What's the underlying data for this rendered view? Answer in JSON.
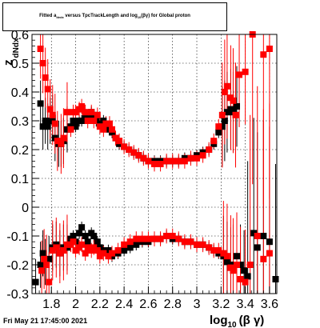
{
  "chart_data": {
    "type": "scatter",
    "title_parts": [
      "Fitted a",
      "dedx",
      " versus TpcTrackLength and log",
      "10",
      "(βγ) for Global proton"
    ],
    "xlabel": "log",
    "xlabel_sub": "10",
    "xlabel_tail": "(β γ)",
    "ylabel": "dNdx",
    "ylabel_prefix": "z",
    "xlim": [
      1.64,
      3.66
    ],
    "ylim": [
      -0.3,
      0.6
    ],
    "x_ticks": [
      "1.8",
      "2",
      "2.2",
      "2.4",
      "2.6",
      "2.8",
      "3",
      "3.2",
      "3.4",
      "3.6"
    ],
    "y_ticks": [
      "-0.3",
      "-0.2",
      "-0.1",
      "0",
      "0.1",
      "0.2",
      "0.3",
      "0.4",
      "0.5",
      "0.6"
    ],
    "grid": true,
    "series": [
      {
        "color": "#000000",
        "marker": "square",
        "points": [
          [
            1.71,
            0.36
          ],
          [
            1.73,
            0.28
          ],
          [
            1.75,
            0.3
          ],
          [
            1.77,
            0.28
          ],
          [
            1.79,
            0.3
          ],
          [
            1.81,
            0.31
          ],
          [
            1.83,
            0.24
          ],
          [
            1.86,
            0.22
          ],
          [
            1.88,
            0.22
          ],
          [
            1.9,
            0.23
          ],
          [
            1.93,
            0.27
          ],
          [
            1.96,
            0.28
          ],
          [
            1.98,
            0.3
          ],
          [
            2.0,
            0.28
          ],
          [
            2.03,
            0.3
          ],
          [
            2.05,
            0.3
          ],
          [
            2.08,
            0.32
          ],
          [
            2.1,
            0.31
          ],
          [
            2.13,
            0.33
          ],
          [
            2.15,
            0.32
          ],
          [
            2.17,
            0.3
          ],
          [
            2.2,
            0.29
          ],
          [
            2.23,
            0.3
          ],
          [
            2.25,
            0.28
          ],
          [
            2.28,
            0.27
          ],
          [
            2.3,
            0.26
          ],
          [
            2.33,
            0.24
          ],
          [
            2.36,
            0.22
          ],
          [
            2.4,
            0.21
          ],
          [
            2.44,
            0.2
          ],
          [
            2.48,
            0.19
          ],
          [
            2.52,
            0.18
          ],
          [
            2.56,
            0.17
          ],
          [
            2.6,
            0.16
          ],
          [
            2.65,
            0.16
          ],
          [
            2.7,
            0.16
          ],
          [
            2.75,
            0.16
          ],
          [
            2.8,
            0.16
          ],
          [
            2.85,
            0.16
          ],
          [
            2.9,
            0.17
          ],
          [
            2.95,
            0.17
          ],
          [
            3.0,
            0.18
          ],
          [
            3.05,
            0.19
          ],
          [
            3.1,
            0.2
          ],
          [
            3.14,
            0.22
          ],
          [
            3.18,
            0.26
          ],
          [
            3.21,
            0.28
          ],
          [
            3.23,
            0.3
          ],
          [
            3.25,
            0.33
          ],
          [
            3.28,
            0.34
          ],
          [
            3.3,
            0.33
          ],
          [
            3.33,
            0.35
          ],
          [
            1.67,
            -0.26
          ],
          [
            1.71,
            -0.2
          ],
          [
            1.73,
            -0.16
          ],
          [
            1.75,
            -0.19
          ],
          [
            1.78,
            -0.18
          ],
          [
            1.81,
            -0.14
          ],
          [
            1.84,
            -0.13
          ],
          [
            1.87,
            -0.16
          ],
          [
            1.9,
            -0.14
          ],
          [
            1.93,
            -0.14
          ],
          [
            1.96,
            -0.11
          ],
          [
            1.98,
            -0.1
          ],
          [
            2.0,
            -0.12
          ],
          [
            2.03,
            -0.09
          ],
          [
            2.05,
            -0.07
          ],
          [
            2.08,
            -0.1
          ],
          [
            2.1,
            -0.12
          ],
          [
            2.13,
            -0.09
          ],
          [
            2.15,
            -0.1
          ],
          [
            2.18,
            -0.12
          ],
          [
            2.2,
            -0.14
          ],
          [
            2.23,
            -0.15
          ],
          [
            2.27,
            -0.15
          ],
          [
            2.3,
            -0.17
          ],
          [
            2.35,
            -0.16
          ],
          [
            2.4,
            -0.15
          ],
          [
            2.45,
            -0.14
          ],
          [
            2.5,
            -0.13
          ],
          [
            2.55,
            -0.12
          ],
          [
            2.6,
            -0.12
          ],
          [
            2.65,
            -0.11
          ],
          [
            2.7,
            -0.11
          ],
          [
            2.75,
            -0.1
          ],
          [
            2.8,
            -0.11
          ],
          [
            2.85,
            -0.11
          ],
          [
            2.9,
            -0.12
          ],
          [
            2.95,
            -0.12
          ],
          [
            3.0,
            -0.13
          ],
          [
            3.05,
            -0.13
          ],
          [
            3.1,
            -0.14
          ],
          [
            3.14,
            -0.15
          ],
          [
            3.18,
            -0.16
          ],
          [
            3.22,
            -0.17
          ],
          [
            3.25,
            -0.19
          ],
          [
            3.28,
            -0.21
          ],
          [
            3.3,
            -0.2
          ],
          [
            3.33,
            -0.17
          ],
          [
            3.36,
            -0.2
          ],
          [
            3.39,
            -0.22
          ],
          [
            3.42,
            -0.24
          ],
          [
            3.47,
            -0.09
          ],
          [
            3.5,
            -0.14
          ],
          [
            3.55,
            -0.1
          ],
          [
            3.6,
            -0.12
          ],
          [
            3.65,
            -0.25
          ]
        ]
      },
      {
        "color": "#ff0000",
        "marker": "square",
        "points": [
          [
            1.71,
            0.55
          ],
          [
            1.73,
            0.5
          ],
          [
            1.75,
            0.45
          ],
          [
            1.77,
            0.41
          ],
          [
            1.79,
            0.34
          ],
          [
            1.81,
            0.32
          ],
          [
            1.83,
            0.29
          ],
          [
            1.85,
            0.23
          ],
          [
            1.88,
            0.22
          ],
          [
            1.9,
            0.24
          ],
          [
            1.93,
            0.33
          ],
          [
            1.96,
            0.27
          ],
          [
            1.98,
            0.33
          ],
          [
            2.0,
            0.33
          ],
          [
            2.03,
            0.34
          ],
          [
            2.05,
            0.35
          ],
          [
            2.08,
            0.33
          ],
          [
            2.1,
            0.3
          ],
          [
            2.13,
            0.33
          ],
          [
            2.15,
            0.3
          ],
          [
            2.18,
            0.32
          ],
          [
            2.2,
            0.28
          ],
          [
            2.23,
            0.27
          ],
          [
            2.25,
            0.29
          ],
          [
            2.28,
            0.29
          ],
          [
            2.3,
            0.27
          ],
          [
            2.33,
            0.24
          ],
          [
            2.36,
            0.23
          ],
          [
            2.4,
            0.21
          ],
          [
            2.44,
            0.2
          ],
          [
            2.48,
            0.19
          ],
          [
            2.52,
            0.18
          ],
          [
            2.56,
            0.17
          ],
          [
            2.6,
            0.16
          ],
          [
            2.65,
            0.15
          ],
          [
            2.7,
            0.15
          ],
          [
            2.75,
            0.16
          ],
          [
            2.8,
            0.16
          ],
          [
            2.85,
            0.16
          ],
          [
            2.9,
            0.16
          ],
          [
            2.95,
            0.17
          ],
          [
            3.0,
            0.17
          ],
          [
            3.05,
            0.18
          ],
          [
            3.1,
            0.2
          ],
          [
            3.14,
            0.23
          ],
          [
            3.18,
            0.28
          ],
          [
            3.21,
            0.32
          ],
          [
            3.23,
            0.4
          ],
          [
            3.25,
            0.42
          ],
          [
            3.28,
            0.38
          ],
          [
            3.3,
            0.37
          ],
          [
            3.32,
            0.32
          ],
          [
            3.35,
            0.46
          ],
          [
            3.4,
            0.47
          ],
          [
            3.46,
            0.6
          ],
          [
            3.55,
            0.53
          ],
          [
            3.6,
            0.55
          ],
          [
            1.72,
            -0.22
          ],
          [
            1.74,
            -0.18
          ],
          [
            1.76,
            -0.2
          ],
          [
            1.78,
            -0.26
          ],
          [
            1.81,
            -0.15
          ],
          [
            1.84,
            -0.14
          ],
          [
            1.87,
            -0.16
          ],
          [
            1.9,
            -0.15
          ],
          [
            1.93,
            -0.13
          ],
          [
            1.96,
            -0.13
          ],
          [
            1.98,
            -0.12
          ],
          [
            2.0,
            -0.15
          ],
          [
            2.03,
            -0.14
          ],
          [
            2.05,
            -0.13
          ],
          [
            2.08,
            -0.16
          ],
          [
            2.1,
            -0.14
          ],
          [
            2.13,
            -0.15
          ],
          [
            2.15,
            -0.14
          ],
          [
            2.18,
            -0.15
          ],
          [
            2.2,
            -0.17
          ],
          [
            2.23,
            -0.16
          ],
          [
            2.27,
            -0.17
          ],
          [
            2.3,
            -0.16
          ],
          [
            2.35,
            -0.15
          ],
          [
            2.4,
            -0.13
          ],
          [
            2.45,
            -0.12
          ],
          [
            2.5,
            -0.11
          ],
          [
            2.55,
            -0.11
          ],
          [
            2.6,
            -0.11
          ],
          [
            2.65,
            -0.11
          ],
          [
            2.7,
            -0.11
          ],
          [
            2.75,
            -0.1
          ],
          [
            2.8,
            -0.1
          ],
          [
            2.85,
            -0.11
          ],
          [
            2.9,
            -0.12
          ],
          [
            2.95,
            -0.12
          ],
          [
            3.0,
            -0.13
          ],
          [
            3.05,
            -0.13
          ],
          [
            3.1,
            -0.14
          ],
          [
            3.14,
            -0.15
          ],
          [
            3.18,
            -0.15
          ],
          [
            3.22,
            -0.16
          ],
          [
            3.25,
            -0.17
          ],
          [
            3.28,
            -0.21
          ],
          [
            3.3,
            -0.22
          ],
          [
            3.33,
            -0.2
          ],
          [
            3.36,
            -0.25
          ],
          [
            3.4,
            -0.26
          ],
          [
            3.44,
            -0.2
          ],
          [
            3.5,
            -0.1
          ],
          [
            3.55,
            -0.18
          ],
          [
            3.6,
            -0.16
          ]
        ]
      }
    ]
  },
  "date_stamp": "Fri May 21 17:45:00 2021"
}
